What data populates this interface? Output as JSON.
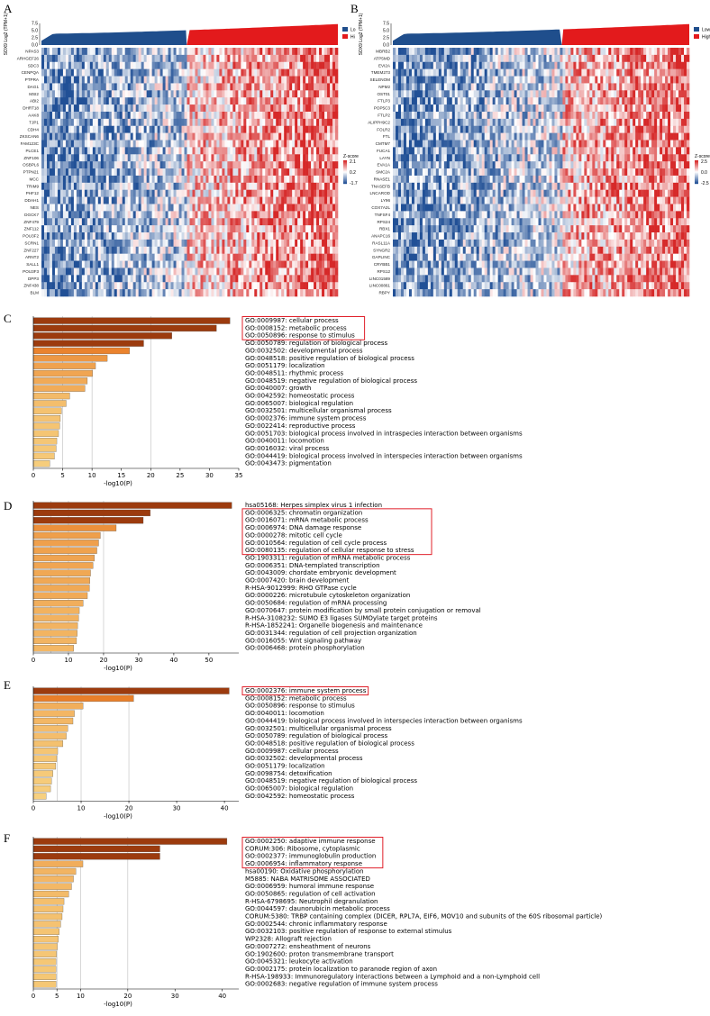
{
  "panel_labels": [
    "A",
    "B",
    "C",
    "D",
    "E",
    "F"
  ],
  "colors": {
    "low": "#1f4e8c",
    "high": "#e31a1c",
    "bar_dark": "#9c3b0e",
    "bar_mid": "#e8862a",
    "bar_light": "#f9dc8c",
    "highlight_box": "#e0202a"
  },
  "heatmaps": [
    {
      "id": "A",
      "ylabel": "SOX9 Log2 (TPM+1)",
      "yticks": [
        "7.5",
        "5.0",
        "2.5",
        "0.0"
      ],
      "legend": {
        "low": "Lo",
        "high": "Hi"
      },
      "zscore": {
        "title": "Z-score",
        "max": "2.1",
        "mid": "0.2",
        "min": "-1.7"
      },
      "genes": [
        "NPAS3",
        "ARHGEF26",
        "SDC3",
        "CENPQA",
        "PTPRA",
        "DAG1",
        "MSI2",
        "ABI2",
        "DHRT18",
        "AAK8",
        "TJP1",
        "CDH4",
        "ZKSCAN6",
        "FAM123C",
        "PLCE1",
        "ZNF106",
        "OSBPL6",
        "PTPN21",
        "MCC",
        "TRIM9",
        "PHF12",
        "DDAH1",
        "NES",
        "DGCK7",
        "ZNF479",
        "ZNF112",
        "POU3F2",
        "SCRN1",
        "ZNF227",
        "ARNT2",
        "SALL1",
        "POU3F3",
        "DPP3",
        "ZNF438",
        "BLM"
      ]
    },
    {
      "id": "B",
      "ylabel": "SOX9 Log2 (TPM+1)",
      "yticks": [
        "7.5",
        "5.0",
        "2.5",
        "0.0"
      ],
      "legend": {
        "low": "Low",
        "high": "High"
      },
      "zscore": {
        "title": "Z-score",
        "max": "2.5",
        "mid": "0.0",
        "min": "-2.5"
      },
      "genes": [
        "MBRB2",
        "ATP5MD",
        "EVI2A",
        "TMEM273",
        "SELENOM",
        "NPM2",
        "OST01",
        "FTLP3",
        "POP5C3",
        "FTLP2",
        "ALIPPH9C2",
        "FOLR2",
        "FTL",
        "CMTM7",
        "FUCA1",
        "LAYN",
        "EVA1A",
        "SMC2A",
        "RNASE1",
        "TNASEFB",
        "LNCAROD",
        "LY96",
        "COX7A2L",
        "TNFSF4",
        "RPS24",
        "RBX1",
        "ANAPC16",
        "RASL11A",
        "SYNGR2",
        "GAPLINC",
        "CRYBB1",
        "RPS12",
        "LINC01589",
        "LINC00861",
        "RBPY"
      ]
    }
  ],
  "chart_data": [
    {
      "type": "bar",
      "panel": "C",
      "xlabel": "-log10(P)",
      "xlim": [
        0,
        35
      ],
      "xticks": [
        "0",
        "5",
        "10",
        "15",
        "20",
        "25",
        "30",
        "35"
      ],
      "categories": [
        "GO:0009987: cellular process",
        "GO:0008152: metabolic process",
        "GO:0050896: response to stimulus",
        "GO:0050789: regulation of biological process",
        "GO:0032502: developmental process",
        "GO:0048518: positive regulation of biological process",
        "GO:0051179: localization",
        "GO:0048511: rhythmic process",
        "GO:0048519: negative regulation of biological process",
        "GO:0040007: growth",
        "GO:0042592: homeostatic process",
        "GO:0065007: biological regulation",
        "GO:0032501: multicellular organismal process",
        "GO:0002376: immune system process",
        "GO:0022414: reproductive process",
        "GO:0051703: biological process involved in intraspecies interaction between organisms",
        "GO:0040011: locomotion",
        "GO:0016032: viral process",
        "GO:0044419: biological process involved in interspecies interaction between organisms",
        "GO:0043473: pigmentation"
      ],
      "values": [
        33.5,
        31.2,
        23.6,
        18.8,
        16.4,
        12.6,
        10.6,
        10.1,
        9.2,
        8.8,
        6.2,
        5.6,
        4.8,
        4.6,
        4.5,
        4.3,
        4.0,
        3.9,
        3.6,
        2.8
      ],
      "highlighted": [
        0,
        1,
        2
      ]
    },
    {
      "type": "bar",
      "panel": "D",
      "xlabel": "-log10(P)",
      "xlim": [
        0,
        55
      ],
      "xticks": [
        "0",
        "10",
        "20",
        "30",
        "40",
        "50"
      ],
      "categories": [
        "hsa05168: Herpes simplex virus 1 infection",
        "GO:0006325: chromatin organization",
        "GO:0016071: mRNA metabolic process",
        "GO:0006974: DNA damage response",
        "GO:0000278: mitotic cell cycle",
        "GO:0010564: regulation of cell cycle process",
        "GO:0080135: regulation of cellular response to stress",
        "GO:1903311: regulation of mRNA metabolic process",
        "GO:0006351: DNA-templated transcription",
        "GO:0043009: chordate embryonic development",
        "GO:0007420: brain development",
        "R-HSA-9012999: RHO GTPase cycle",
        "GO:0000226: microtubule cytoskeleton organization",
        "GO:0050684: regulation of mRNA processing",
        "GO:0070647: protein modification by small protein conjugation or removal",
        "R-HSA-3108232: SUMO E3 ligases SUMOylate target proteins",
        "R-HSA-1852241: Organelle biogenesis and maintenance",
        "GO:0031344: regulation of cell projection organization",
        "GO:0016055: Wnt signaling pathway",
        "GO:0006468: protein phosphorylation"
      ],
      "values": [
        56.5,
        33.3,
        31.3,
        23.6,
        19.1,
        18.6,
        18.1,
        17.4,
        17.0,
        16.3,
        16.1,
        16.0,
        15.4,
        14.2,
        13.1,
        12.9,
        12.6,
        12.5,
        12.3,
        11.5
      ],
      "highlighted": [
        1,
        2,
        3,
        4,
        5,
        6
      ]
    },
    {
      "type": "bar",
      "panel": "E",
      "xlabel": "-log10(P)",
      "xlim": [
        0,
        40
      ],
      "xticks": [
        "0",
        "10",
        "20",
        "30",
        "40"
      ],
      "categories": [
        "GO:0002376: immune system process",
        "GO:0008152: metabolic process",
        "GO:0050896: response to stimulus",
        "GO:0040011: locomotion",
        "GO:0044419: biological process involved in interspecies interaction between organisms",
        "GO:0032501: multicellular organismal process",
        "GO:0050789: regulation of biological process",
        "GO:0048518: positive regulation of biological process",
        "GO:0009987: cellular process",
        "GO:0032502: developmental process",
        "GO:0051179: localization",
        "GO:0098754: detoxification",
        "GO:0048519: negative regulation of biological process",
        "GO:0065007: biological regulation",
        "GO:0042592: homeostatic process"
      ],
      "values": [
        41.0,
        21.0,
        10.4,
        8.6,
        8.3,
        7.2,
        6.9,
        6.2,
        5.1,
        4.9,
        4.7,
        4.1,
        3.8,
        3.6,
        2.7
      ],
      "highlighted": [
        0
      ]
    },
    {
      "type": "bar",
      "panel": "F",
      "xlabel": "-log10(P)",
      "xlim": [
        0,
        40
      ],
      "xticks": [
        "0",
        "5",
        "10",
        "20",
        "30",
        "40"
      ],
      "categories": [
        "GO:0002250: adaptive immune response",
        "CORUM:306: Ribosome, cytoplasmic",
        "GO:0002377: immunoglobulin production",
        "GO:0006954: inflammatory response",
        "hsa00190: Oxidative phosphorylation",
        "M5885: NABA MATRISOME ASSOCIATED",
        "GO:0006959: humoral immune response",
        "GO:0050865: regulation of cell activation",
        "R-HSA-6798695: Neutrophil degranulation",
        "GO:0044597: daunorubicin metabolic process",
        "CORUM:5380: TRBP containing complex (DICER, RPL7A, EIF6, MOV10 and subunits of the 60S ribosomal particle)",
        "GO:0002544: chronic inflammatory response",
        "GO:0032103: positive regulation of response to external stimulus",
        "WP2328: Allograft rejection",
        "GO:0007272: ensheathment of neurons",
        "GO:1902600: proton transmembrane transport",
        "GO:0045321: leukocyte activation",
        "GO:0002175: protein localization to paranode region of axon",
        "R-HSA-198933: Immunoregulatory interactions between a Lymphoid and a non-Lymphoid cell",
        "GO:0002683: negative regulation of immune system process"
      ],
      "values": [
        41.0,
        26.8,
        26.8,
        10.5,
        9.0,
        8.5,
        8.1,
        7.5,
        6.5,
        6.3,
        6.1,
        5.8,
        5.5,
        5.3,
        5.1,
        4.9,
        4.8,
        4.8,
        4.8,
        4.8
      ],
      "highlighted": [
        0,
        1,
        2,
        3
      ]
    }
  ]
}
